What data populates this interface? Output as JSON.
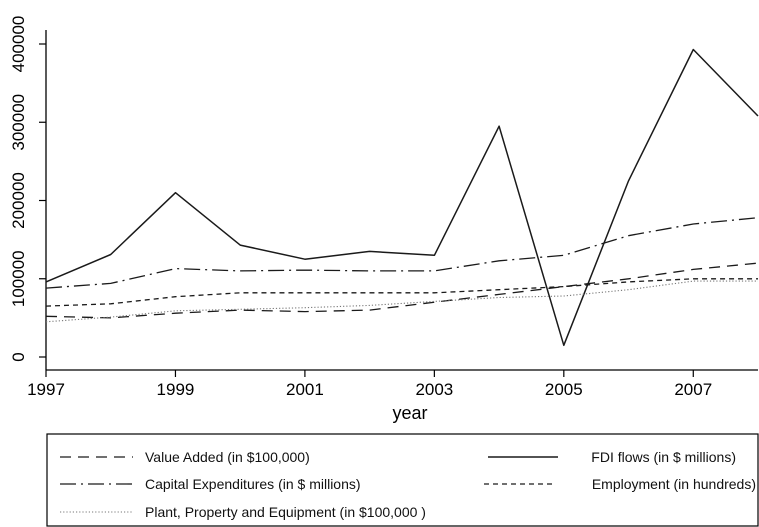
{
  "chart_data": {
    "type": "line",
    "xlabel": "year",
    "ylabel": "",
    "xlim": [
      1997,
      2008
    ],
    "ylim": [
      0,
      400000
    ],
    "x_ticks": [
      "1997",
      "1999",
      "2001",
      "2003",
      "2005",
      "2007"
    ],
    "y_ticks": [
      "0",
      "100000",
      "200000",
      "300000",
      "400000"
    ],
    "x": [
      1997,
      1998,
      1999,
      2000,
      2001,
      2002,
      2003,
      2004,
      2005,
      2006,
      2007,
      2008
    ],
    "grid": false,
    "legend_position": "bottom",
    "series": [
      {
        "name": "Value Added (in $100,000)",
        "style": "dashed",
        "values": [
          52000,
          50000,
          56000,
          60000,
          58000,
          60000,
          70000,
          80000,
          90000,
          100000,
          112000,
          120000
        ]
      },
      {
        "name": "FDI flows (in $ millions)",
        "style": "solid",
        "values": [
          96000,
          131000,
          210000,
          143000,
          125000,
          135000,
          130000,
          295000,
          15000,
          225000,
          393000,
          308000
        ]
      },
      {
        "name": "Capital Expenditures (in $ millions)",
        "style": "dashdot",
        "values": [
          88000,
          94000,
          113000,
          110000,
          111000,
          110000,
          110000,
          123000,
          130000,
          155000,
          170000,
          178000
        ]
      },
      {
        "name": "Employment (in hundreds)",
        "style": "shortdash",
        "values": [
          65000,
          68000,
          77000,
          82000,
          82000,
          82000,
          82000,
          86000,
          90000,
          96000,
          100000,
          100000
        ]
      },
      {
        "name": "Plant, Property and Equipment (in $100,000 )",
        "style": "dotted",
        "values": [
          45000,
          51000,
          59000,
          61000,
          63000,
          66000,
          71000,
          76000,
          78000,
          86000,
          97000,
          97000
        ]
      }
    ]
  }
}
